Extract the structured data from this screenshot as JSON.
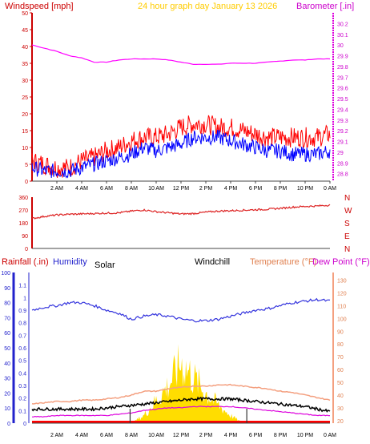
{
  "header": {
    "windspeed_label": "Windspeed [mph]",
    "title": "24 hour graph day   January 13 2026",
    "barometer_label": "Barometer [.in]"
  },
  "lower_header": {
    "rainfall_label": "Rainfall (.in)",
    "humidity_label": "Humidity",
    "solar_label": "Solar",
    "windchill_label": "Windchill",
    "temperature_label": "Temperature (°F)",
    "dewpoint_label": "Dew Point (°F)"
  },
  "colors": {
    "wind_gust": "#ff0000",
    "wind_avg": "#0000ff",
    "barometer": "#ff00ff",
    "direction": "#dd2222",
    "humidity": "#3333dd",
    "temperature": "#f4a080",
    "dewpoint": "#dd00dd",
    "windchill": "#000000",
    "solar": "#ffdd00",
    "rain": "#ff0000",
    "header_windspeed": "#cc0000",
    "header_title": "#ffcc00",
    "header_barometer": "#cc00cc"
  },
  "chart_data": [
    {
      "type": "line",
      "name": "wind-barometer-panel",
      "x_ticks": [
        "2 AM",
        "4 AM",
        "6 AM",
        "8 AM",
        "10 AM",
        "12 PM",
        "2 PM",
        "4 PM",
        "6 PM",
        "8 PM",
        "10 PM",
        "0 AM"
      ],
      "y_left_ticks": [
        0,
        5,
        10,
        15,
        20,
        25,
        30,
        35,
        40,
        45,
        50
      ],
      "y_left_range": [
        0,
        50
      ],
      "y_right_ticks": [
        "28.8",
        "28.9",
        "29",
        "29.1",
        "29.2",
        "29.3",
        "29.4",
        "29.5",
        "29.6",
        "29.7",
        "29.8",
        "29.9",
        "30",
        "30.1",
        "30.2"
      ],
      "y_right_range": [
        28.73,
        30.3
      ],
      "x_hours": [
        0,
        1,
        2,
        3,
        4,
        5,
        6,
        7,
        8,
        9,
        10,
        11,
        12,
        13,
        14,
        15,
        16,
        17,
        18,
        19,
        20,
        21,
        22,
        23,
        24
      ],
      "series": [
        {
          "role": "gust",
          "values": [
            6,
            5,
            4,
            4,
            6,
            7,
            9,
            10,
            12,
            13,
            13,
            14,
            16,
            17,
            17,
            16,
            16,
            15,
            14,
            13,
            13,
            13,
            13,
            13,
            14
          ]
        },
        {
          "role": "average",
          "values": [
            4,
            3,
            3,
            3,
            4,
            5,
            6,
            7,
            8,
            10,
            9,
            10,
            11,
            13,
            13,
            13,
            12,
            11,
            10,
            9,
            9,
            8,
            8,
            8,
            9
          ]
        },
        {
          "role": "barometer",
          "values": [
            30.0,
            29.97,
            29.94,
            29.9,
            29.88,
            29.84,
            29.84,
            29.86,
            29.87,
            29.87,
            29.87,
            29.86,
            29.84,
            29.82,
            29.82,
            29.82,
            29.83,
            29.83,
            29.83,
            29.84,
            29.85,
            29.86,
            29.86,
            29.87,
            29.87
          ]
        }
      ]
    },
    {
      "type": "line",
      "name": "wind-direction-panel",
      "y_left_ticks": [
        0,
        90,
        180,
        270,
        360
      ],
      "y_left_range": [
        0,
        360
      ],
      "y_right_labels": [
        "N",
        "W",
        "S",
        "E",
        "N"
      ],
      "x_hours": [
        0,
        1,
        2,
        3,
        4,
        5,
        6,
        7,
        8,
        9,
        10,
        11,
        12,
        13,
        14,
        15,
        16,
        17,
        18,
        19,
        20,
        21,
        22,
        23,
        24
      ],
      "series": [
        {
          "role": "direction",
          "values": [
            210,
            225,
            235,
            240,
            242,
            245,
            248,
            250,
            262,
            270,
            258,
            250,
            242,
            245,
            255,
            262,
            265,
            268,
            272,
            275,
            282,
            290,
            295,
            298,
            305
          ]
        }
      ]
    },
    {
      "type": "line",
      "name": "climate-panel",
      "y_left_ticks": [
        0,
        10,
        20,
        30,
        40,
        50,
        60,
        70,
        80,
        90,
        100
      ],
      "y_left_range": [
        0,
        100
      ],
      "y_rain_ticks": [
        "0",
        "0.1",
        "0.2",
        "0.3",
        "0.4",
        "0.5",
        "0.6",
        "0.7",
        "0.8",
        "0.9",
        "1",
        "1.1"
      ],
      "y_rain_range": [
        0,
        1.2
      ],
      "y_right_ticks": [
        20,
        30,
        40,
        50,
        60,
        70,
        80,
        90,
        100,
        110,
        120,
        130
      ],
      "y_right_range": [
        18,
        136
      ],
      "x_hours": [
        0,
        1,
        2,
        3,
        4,
        5,
        6,
        7,
        8,
        9,
        10,
        11,
        12,
        13,
        14,
        15,
        16,
        17,
        18,
        19,
        20,
        21,
        22,
        23,
        24
      ],
      "series": [
        {
          "role": "humidity",
          "values": [
            75,
            77,
            78,
            80,
            80,
            78,
            75,
            73,
            69,
            71,
            72,
            71,
            69,
            68,
            68,
            69,
            71,
            73,
            75,
            76,
            78,
            80,
            81,
            82,
            81
          ]
        },
        {
          "role": "temperature",
          "values": [
            33,
            34,
            35,
            35,
            36,
            36,
            37,
            38,
            40,
            43,
            43,
            45,
            46,
            47,
            47,
            48,
            48,
            47,
            46,
            45,
            43,
            42,
            40,
            38,
            36
          ]
        },
        {
          "role": "windchill",
          "values": [
            29,
            29,
            29,
            29,
            29,
            29,
            30,
            31,
            32,
            33,
            34,
            35,
            36,
            37,
            37,
            37,
            37,
            36,
            35,
            34,
            33,
            32,
            31,
            29,
            27
          ]
        },
        {
          "role": "dewpoint",
          "values": [
            23,
            23,
            24,
            24,
            24,
            24,
            24,
            25,
            26,
            28,
            29,
            30,
            30,
            31,
            31,
            31,
            31,
            30,
            29,
            28,
            27,
            26,
            25,
            24,
            24
          ]
        },
        {
          "role": "solar",
          "values": [
            0,
            0,
            0,
            0,
            0,
            0,
            0,
            0,
            0,
            5,
            15,
            25,
            40,
            30,
            20,
            12,
            5,
            0,
            0,
            0,
            0,
            0,
            0,
            0,
            0
          ]
        },
        {
          "role": "rain",
          "values": [
            0,
            0,
            0,
            0,
            0,
            0,
            0,
            0,
            0,
            0,
            0,
            0,
            0,
            0,
            0,
            0,
            0,
            0,
            0,
            0,
            0,
            0,
            0,
            0,
            0
          ]
        }
      ]
    }
  ]
}
